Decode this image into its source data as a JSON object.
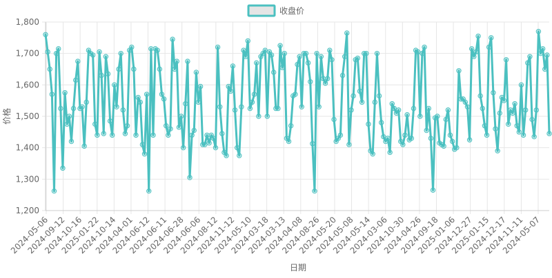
{
  "chart_data": {
    "type": "line",
    "xlabel": "日期",
    "ylabel": "价格",
    "ylim": [
      1200,
      1800
    ],
    "yticks": [
      1200,
      1300,
      1400,
      1500,
      1600,
      1700,
      1800
    ],
    "grid": true,
    "legend_position": "top",
    "colors": {
      "line": "#4bc0c0",
      "legend_fill": "#e5e5e5",
      "grid": "#e6e6e6",
      "text": "#666666"
    },
    "x_tick_labels": [
      "2024-05-06",
      "2024-09-12",
      "2024-10-16",
      "2025-01-22",
      "2024-10-14",
      "2024-04-01",
      "2024-06-12",
      "2024-06-11",
      "2024-06-28",
      "2024-06-06",
      "2024-08-12",
      "2024-11-12",
      "2024-05-10",
      "2024-03-18",
      "2024-03-13",
      "2024-04-08",
      "2024-08-26",
      "2024-05-20",
      "2024-05-08",
      "2024-05-14",
      "2024-03-06",
      "2024-10-30",
      "2024-04-26",
      "2024-09-18",
      "2025-01-06",
      "2024-12-27",
      "2025-01-15",
      "2024-12-17",
      "2024-11-11",
      "2024-05-07"
    ],
    "series": [
      {
        "name": "收盘价",
        "values": [
          1760,
          1705,
          1650,
          1570,
          1262,
          1700,
          1715,
          1525,
          1335,
          1575,
          1475,
          1500,
          1420,
          1525,
          1615,
          1675,
          1525,
          1530,
          1405,
          1545,
          1710,
          1700,
          1695,
          1475,
          1440,
          1705,
          1630,
          1445,
          1690,
          1635,
          1485,
          1440,
          1600,
          1530,
          1650,
          1700,
          1520,
          1445,
          1470,
          1710,
          1720,
          1650,
          1440,
          1560,
          1545,
          1410,
          1380,
          1570,
          1262,
          1715,
          1440,
          1715,
          1710,
          1650,
          1570,
          1555,
          1470,
          1440,
          1460,
          1745,
          1650,
          1675,
          1465,
          1500,
          1400,
          1540,
          1675,
          1305,
          1440,
          1455,
          1640,
          1545,
          1595,
          1410,
          1410,
          1440,
          1415,
          1440,
          1430,
          1400,
          1720,
          1530,
          1445,
          1385,
          1375,
          1595,
          1580,
          1660,
          1520,
          1400,
          1375,
          1530,
          1710,
          1690,
          1740,
          1525,
          1545,
          1570,
          1670,
          1500,
          1690,
          1700,
          1710,
          1500,
          1705,
          1695,
          1640,
          1525,
          1525,
          1725,
          1655,
          1700,
          1430,
          1420,
          1470,
          1565,
          1570,
          1665,
          1690,
          1530,
          1700,
          1700,
          1670,
          1610,
          1413,
          1262,
          1700,
          1530,
          1690,
          1620,
          1605,
          1620,
          1710,
          1680,
          1490,
          1420,
          1430,
          1440,
          1630,
          1690,
          1765,
          1410,
          1520,
          1565,
          1680,
          1685,
          1580,
          1545,
          1700,
          1700,
          1475,
          1390,
          1380,
          1545,
          1700,
          1565,
          1480,
          1435,
          1420,
          1430,
          1385,
          1540,
          1525,
          1510,
          1520,
          1420,
          1410,
          1440,
          1505,
          1425,
          1430,
          1525,
          1710,
          1705,
          1500,
          1700,
          1720,
          1455,
          1525,
          1430,
          1265,
          1495,
          1500,
          1415,
          1410,
          1405,
          1490,
          1520,
          1440,
          1420,
          1395,
          1400,
          1645,
          1555,
          1555,
          1545,
          1530,
          1425,
          1715,
          1690,
          1705,
          1755,
          1565,
          1525,
          1470,
          1440,
          1720,
          1750,
          1575,
          1460,
          1390,
          1510,
          1560,
          1550,
          1680,
          1475,
          1520,
          1510,
          1540,
          1470,
          1450,
          1600,
          1440,
          1520,
          1670,
          1690,
          1490,
          1435,
          1520,
          1770,
          1700,
          1715,
          1650,
          1695,
          1445
        ]
      }
    ]
  }
}
